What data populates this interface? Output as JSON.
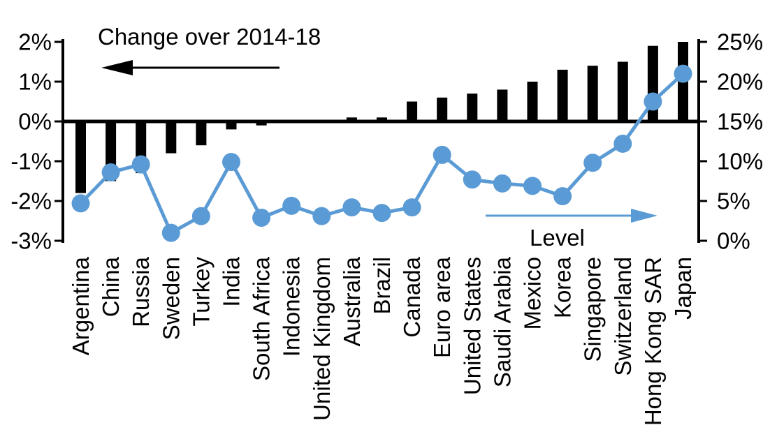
{
  "figure": {
    "background": "#ffffff",
    "bar_color": "#000000",
    "line_color": "#5B9BD5"
  },
  "chart_data": {
    "type": "bar",
    "subtype": "bar+line combo, dual axis",
    "title": "",
    "categories": [
      "Argentina",
      "China",
      "Russia",
      "Sweden",
      "Turkey",
      "India",
      "South Africa",
      "Indonesia",
      "United Kingdom",
      "Australia",
      "Brazil",
      "Canada",
      "Euro area",
      "United States",
      "Saudi Arabia",
      "Mexico",
      "Korea",
      "Singapore",
      "Switzerland",
      "Hong Kong SAR",
      "Japan"
    ],
    "series": [
      {
        "name": "Change over 2014-18",
        "type": "bar",
        "axis": "left",
        "color": "#000000",
        "values": [
          -1.8,
          -1.5,
          -1.3,
          -0.8,
          -0.6,
          -0.2,
          -0.1,
          0,
          0,
          0.1,
          0.1,
          0.5,
          0.6,
          0.7,
          0.8,
          1.0,
          1.3,
          1.4,
          1.5,
          1.9,
          2.0
        ]
      },
      {
        "name": "Level",
        "type": "line",
        "axis": "right",
        "color": "#5B9BD5",
        "values": [
          4.7,
          8.6,
          9.6,
          1.0,
          3.1,
          9.9,
          2.9,
          4.4,
          3.1,
          4.2,
          3.5,
          4.2,
          10.8,
          7.7,
          7.2,
          6.9,
          5.6,
          9.8,
          12.2,
          17.5,
          21.0
        ]
      }
    ],
    "left_axis": {
      "range": [
        -3,
        2
      ],
      "tick_values": [
        2,
        1,
        0,
        -1,
        -2,
        -3
      ],
      "tick_labels": [
        "2%",
        "1%",
        "0%",
        "-1%",
        "-2%",
        "-3%"
      ]
    },
    "right_axis": {
      "range": [
        0,
        25
      ],
      "tick_values": [
        25,
        20,
        15,
        10,
        5,
        0
      ],
      "tick_labels": [
        "25%",
        "20%",
        "15%",
        "10%",
        "5%",
        "0%"
      ]
    },
    "annotations": [
      {
        "text": "Change over 2014-18",
        "arrow_direction": "left",
        "color": "#000000"
      },
      {
        "text": "Level",
        "arrow_direction": "right",
        "color": "#5B9BD5"
      }
    ],
    "grid": false,
    "legend_position": "annotations inside plot"
  }
}
